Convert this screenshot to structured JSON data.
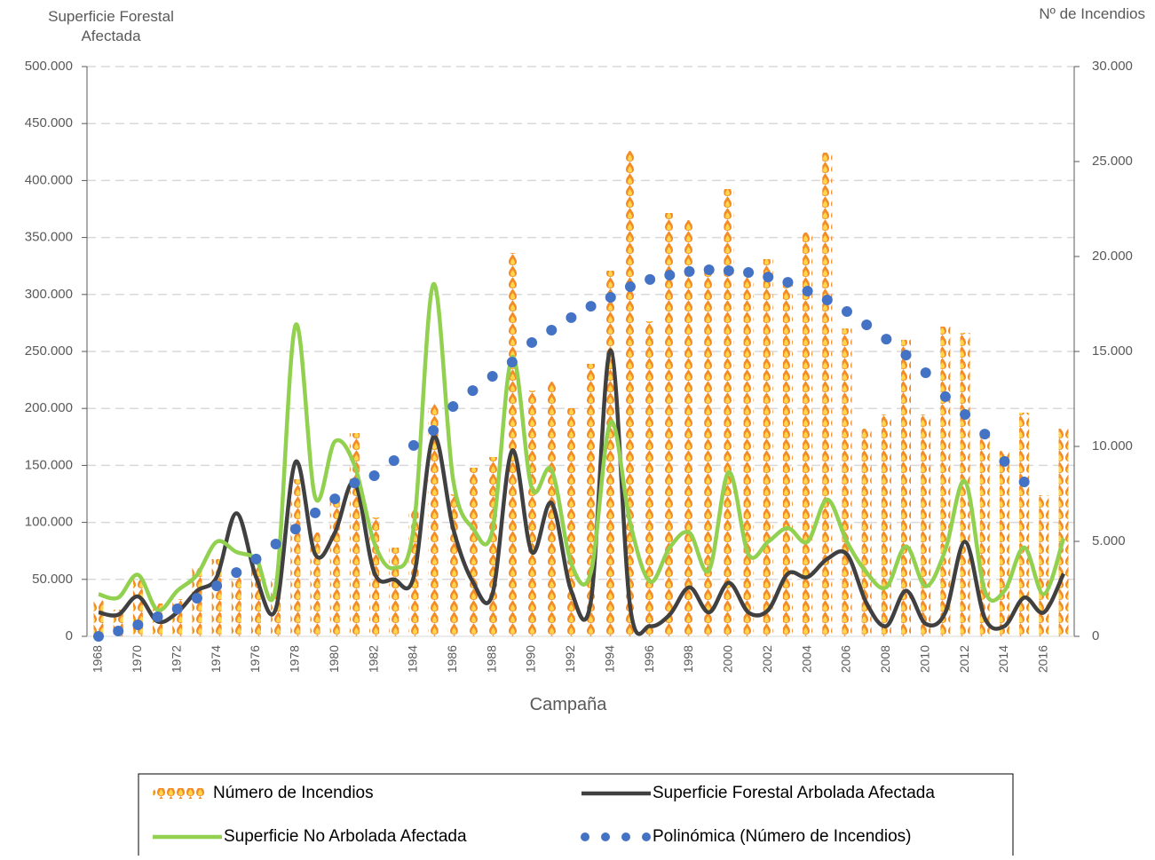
{
  "chart_data": {
    "type": "combo",
    "y_label": "Superficie Forestal Afectada",
    "y2_label": "Nº de Incendios",
    "x_label": "Campaña",
    "categories": [
      "1968",
      null,
      "1970",
      null,
      "1972",
      null,
      "1974",
      null,
      "1976",
      null,
      "1978",
      null,
      "1980",
      null,
      "1982",
      null,
      "1984",
      null,
      "1986",
      null,
      "1988",
      null,
      "1990",
      null,
      "1992",
      null,
      "1994",
      null,
      "1996",
      null,
      "1998",
      null,
      "2000",
      null,
      "2002",
      null,
      "2004",
      null,
      "2006",
      null,
      "2008",
      null,
      "2010",
      null,
      "2012",
      null,
      "2014",
      null,
      "2016",
      null
    ],
    "series": [
      {
        "name": "Número de Incendios",
        "type": "bar",
        "axis": "y2",
        "color": "#f28c28",
        "values": [
          1900,
          1400,
          3130,
          1730,
          1960,
          3600,
          4070,
          3130,
          4300,
          3130,
          8270,
          5470,
          7100,
          10700,
          6260,
          4670,
          6730,
          12240,
          7480,
          8880,
          9440,
          20190,
          12940,
          13410,
          12010,
          14350,
          19250,
          25560,
          16590,
          22290,
          21920,
          19250,
          23550,
          19020,
          19860,
          18550,
          21260,
          25470,
          16210,
          10930,
          11680,
          15610,
          11680,
          16310,
          15980,
          10790,
          9770,
          11780,
          7430,
          10930
        ]
      },
      {
        "name": "Superficie Forestal Arbolada Afectada",
        "type": "line",
        "color": "#404040",
        "values": [
          21000,
          19000,
          35000,
          13000,
          21000,
          40000,
          52000,
          108000,
          52000,
          24000,
          153000,
          72000,
          91000,
          135000,
          56000,
          50000,
          52000,
          175000,
          95000,
          48000,
          37000,
          163000,
          74000,
          117000,
          40000,
          31000,
          251000,
          25000,
          9000,
          19000,
          43000,
          21000,
          47000,
          21000,
          23000,
          55000,
          52000,
          68000,
          72000,
          29000,
          9000,
          40000,
          11000,
          21000,
          83000,
          16000,
          9000,
          34000,
          21000,
          55000
        ]
      },
      {
        "name": "Superficie No Arbolada Afectada",
        "type": "line",
        "color": "#92d050",
        "values": [
          37000,
          34000,
          54000,
          23000,
          40000,
          54000,
          83000,
          74000,
          68000,
          43000,
          273000,
          122000,
          171000,
          150000,
          82000,
          60000,
          95000,
          309000,
          138000,
          95000,
          93000,
          245000,
          130000,
          146000,
          64000,
          56000,
          188000,
          99000,
          48000,
          78000,
          91000,
          58000,
          144000,
          72000,
          83000,
          95000,
          83000,
          120000,
          83000,
          56000,
          43000,
          79000,
          44000,
          76000,
          136000,
          40000,
          40000,
          78000,
          37000,
          86000
        ]
      },
      {
        "name": "Polinómica (Número de Incendios)",
        "type": "dots",
        "axis": "y2",
        "color": "#4472c4",
        "values": [
          0,
          280,
          610,
          1030,
          1450,
          2010,
          2660,
          3360,
          4070,
          4860,
          5650,
          6500,
          7240,
          8080,
          8460,
          9250,
          10050,
          10840,
          12100,
          12940,
          13690,
          14440,
          15470,
          16120,
          16780,
          17380,
          17850,
          18410,
          18790,
          19020,
          19210,
          19300,
          19250,
          19160,
          18920,
          18640,
          18180,
          17710,
          17100,
          16400,
          15650,
          14810,
          13880,
          12620,
          11680,
          10650,
          9210,
          8130,
          null,
          null
        ]
      }
    ],
    "ylim": [
      0,
      500000
    ],
    "yticks": [
      0,
      {
        "value": 50000,
        "label": "50.000"
      },
      {
        "value": 100000,
        "label": "100.000"
      },
      {
        "value": 150000,
        "label": "150.000"
      },
      {
        "value": 200000,
        "label": "200.000"
      },
      {
        "value": 250000,
        "label": "250.000"
      },
      {
        "value": 300000,
        "label": "300.000"
      },
      {
        "value": 350000,
        "label": "350.000"
      },
      {
        "value": 400000,
        "label": "400.000"
      },
      {
        "value": 450000,
        "label": "450.000"
      },
      {
        "value": 500000,
        "label": "500.000"
      }
    ],
    "y2lim": [
      0,
      30000
    ],
    "y2ticks": [
      0,
      {
        "value": 5000,
        "label": "5.000"
      },
      {
        "value": 10000,
        "label": "10.000"
      },
      {
        "value": 15000,
        "label": "15.000"
      },
      {
        "value": 20000,
        "label": "20.000"
      },
      {
        "value": 25000,
        "label": "25.000"
      },
      {
        "value": 30000,
        "label": "30.000"
      }
    ],
    "grid": true
  }
}
